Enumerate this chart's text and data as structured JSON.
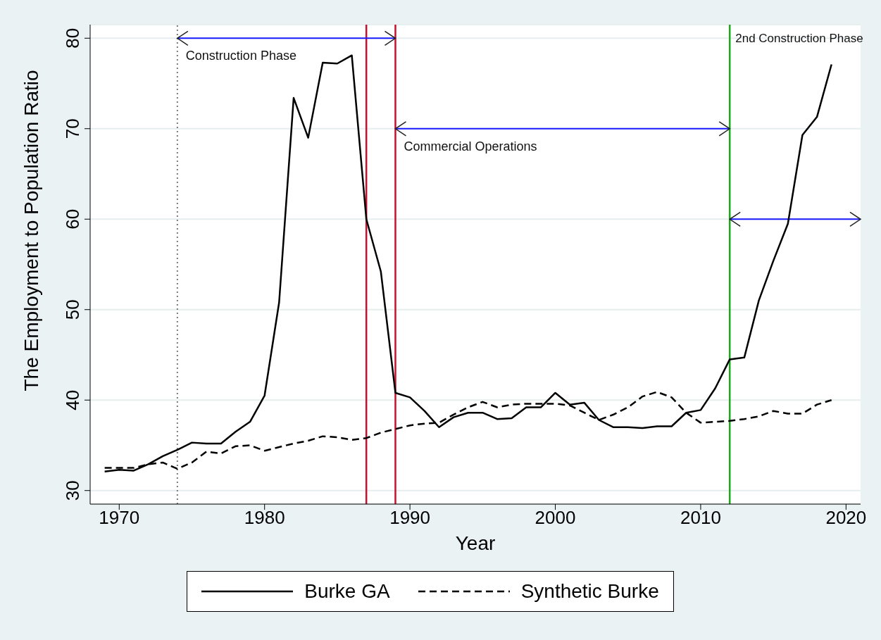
{
  "chart_data": {
    "type": "line",
    "xlabel": "Year",
    "ylabel": "The Employment to Population Ratio",
    "x": [
      1969,
      1970,
      1971,
      1972,
      1973,
      1974,
      1975,
      1976,
      1977,
      1978,
      1979,
      1980,
      1981,
      1982,
      1983,
      1984,
      1985,
      1986,
      1987,
      1988,
      1989,
      1990,
      1991,
      1992,
      1993,
      1994,
      1995,
      1996,
      1997,
      1998,
      1999,
      2000,
      2001,
      2002,
      2003,
      2004,
      2005,
      2006,
      2007,
      2008,
      2009,
      2010,
      2011,
      2012,
      2013,
      2014,
      2015,
      2016,
      2017,
      2018,
      2019
    ],
    "series": [
      {
        "name": "Burke GA",
        "color": "#000000",
        "line_style": "solid",
        "values": [
          32.1,
          32.3,
          32.2,
          32.9,
          33.8,
          34.5,
          35.3,
          35.2,
          35.2,
          36.5,
          37.6,
          40.5,
          50.8,
          73.4,
          69.0,
          77.3,
          77.2,
          78.1,
          60.0,
          54.2,
          40.8,
          40.3,
          38.8,
          37.0,
          38.1,
          38.6,
          38.6,
          37.9,
          38.0,
          39.2,
          39.2,
          40.8,
          39.5,
          39.7,
          37.8,
          37.0,
          37.0,
          36.9,
          37.1,
          37.1,
          38.6,
          38.9,
          41.3,
          44.5,
          44.7,
          51.0,
          55.4,
          59.5,
          69.3,
          71.3,
          77.1
        ]
      },
      {
        "name": "Synthetic Burke",
        "color": "#000000",
        "line_style": "dashed",
        "values": [
          32.5,
          32.5,
          32.5,
          32.9,
          33.1,
          32.4,
          33.1,
          34.3,
          34.1,
          34.9,
          35.0,
          34.4,
          34.8,
          35.2,
          35.5,
          36.0,
          35.9,
          35.6,
          35.8,
          36.4,
          36.8,
          37.2,
          37.4,
          37.5,
          38.4,
          39.2,
          39.8,
          39.2,
          39.5,
          39.6,
          39.6,
          39.6,
          39.4,
          38.6,
          37.8,
          38.4,
          39.2,
          40.4,
          40.9,
          40.3,
          38.6,
          37.5,
          37.6,
          37.7,
          37.9,
          38.2,
          38.8,
          38.5,
          38.5,
          39.5,
          40.0
        ]
      }
    ],
    "xlim": [
      1968,
      2021
    ],
    "xticks": [
      1970,
      1980,
      1990,
      2000,
      2010,
      2020
    ],
    "ylim": [
      28.5,
      81.5
    ],
    "yticks": [
      30,
      40,
      50,
      60,
      70,
      80
    ],
    "grid": "y",
    "legend": "bottom",
    "marker": "none",
    "ref_lines": [
      {
        "axis": "x",
        "value": 1974,
        "color": "#777777",
        "line_style": "dotted"
      },
      {
        "axis": "x",
        "value": 1987,
        "color": "#c8102e",
        "line_style": "solid"
      },
      {
        "axis": "x",
        "value": 1989,
        "color": "#c8102e",
        "line_style": "solid"
      },
      {
        "axis": "x",
        "value": 2012,
        "color": "#1aaa1a",
        "line_style": "solid"
      }
    ],
    "annotations": [
      {
        "text": "Construction Phase",
        "x": 1974,
        "y": 80
      },
      {
        "text": "Commercial Operations",
        "x": 1989,
        "y": 70
      },
      {
        "text": "2nd Construction Phase",
        "x": 2012,
        "y": 80
      }
    ]
  }
}
